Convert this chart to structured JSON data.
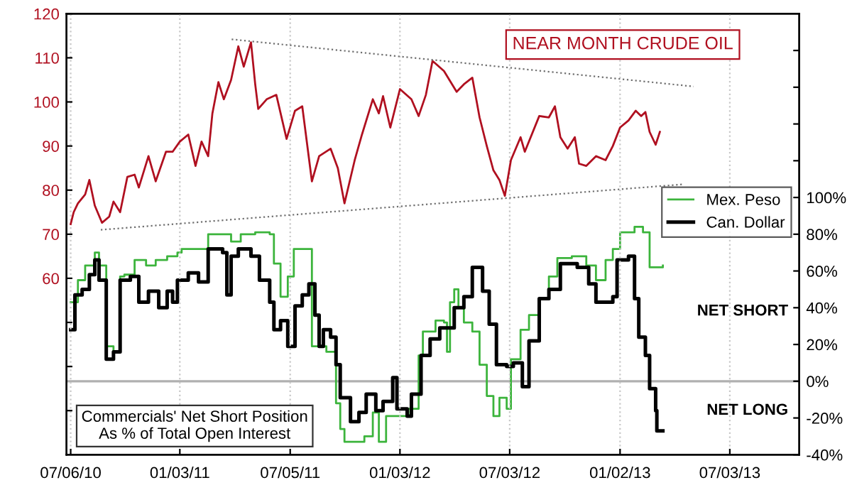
{
  "chart_data": {
    "type": "line",
    "xlim": [
      "2010-06-29",
      "2013-10-26"
    ],
    "xticks": [
      {
        "value": "2010-07-06",
        "label": "07/06/10"
      },
      {
        "value": "2011-01-03",
        "label": "01/03/11"
      },
      {
        "value": "2011-07-05",
        "label": "07/05/11"
      },
      {
        "value": "2012-01-03",
        "label": "01/03/12"
      },
      {
        "value": "2012-07-03",
        "label": "07/03/12"
      },
      {
        "value": "2013-01-02",
        "label": "01/02/13"
      },
      {
        "value": "2013-07-03",
        "label": "07/03/13"
      }
    ],
    "ylim": [
      20,
      120
    ],
    "yticks": [
      {
        "value": 30,
        "label": null
      },
      {
        "value": 40,
        "label": null
      },
      {
        "value": 50,
        "label": null
      },
      60,
      70,
      80,
      90,
      100,
      110,
      120
    ],
    "y2lim": [
      -40,
      200
    ],
    "y2ticks": [
      {
        "value": -40,
        "label": "-40%"
      },
      {
        "value": -20,
        "label": "-20%"
      },
      {
        "value": 0,
        "label": "0%"
      },
      {
        "value": 20,
        "label": "20%"
      },
      {
        "value": 40,
        "label": "40%"
      },
      {
        "value": 60,
        "label": "60%"
      },
      {
        "value": 80,
        "label": "80%"
      },
      {
        "value": 100,
        "label": "100%"
      },
      {
        "value": 120,
        "label": null
      },
      {
        "value": 140,
        "label": null
      },
      {
        "value": 160,
        "label": null
      },
      {
        "value": 180,
        "label": null
      }
    ],
    "grid": "x",
    "legend": "right",
    "ref_lines": [
      {
        "axis": "y2",
        "value": 0,
        "color": "#b0b0b0"
      }
    ],
    "annotations": [
      "NEAR MONTH CRUDE OIL",
      "NET SHORT",
      "NET LONG",
      "Commercials' Net Short Position\nAs % of Total Open Interest"
    ],
    "series": [
      {
        "color": "#b01020",
        "x": [
          "2010-07-06",
          "2010-07-11",
          "2010-07-18",
          "2010-07-30",
          "2010-08-06",
          "2010-08-15",
          "2010-08-27",
          "2010-09-08",
          "2010-09-15",
          "2010-09-26",
          "2010-10-08",
          "2010-10-20",
          "2010-10-27",
          "2010-11-12",
          "2010-11-24",
          "2010-12-11",
          "2010-12-22",
          "2011-01-03",
          "2011-01-17",
          "2011-01-29",
          "2011-02-08",
          "2011-02-19",
          "2011-02-26",
          "2011-03-08",
          "2011-03-17",
          "2011-03-29",
          "2011-04-10",
          "2011-04-19",
          "2011-05-01",
          "2011-05-08",
          "2011-05-13",
          "2011-05-27",
          "2011-06-12",
          "2011-06-29",
          "2011-07-13",
          "2011-07-25",
          "2011-08-10",
          "2011-08-22",
          "2011-09-10",
          "2011-09-22",
          "2011-10-03",
          "2011-10-20",
          "2011-11-01",
          "2011-11-19",
          "2011-11-29",
          "2011-12-06",
          "2011-12-18",
          "2012-01-03",
          "2012-01-22",
          "2012-02-03",
          "2012-02-15",
          "2012-02-26",
          "2012-03-16",
          "2012-04-06",
          "2012-04-18",
          "2012-05-02",
          "2012-05-14",
          "2012-05-26",
          "2012-06-06",
          "2012-06-16",
          "2012-06-25",
          "2012-07-05",
          "2012-07-21",
          "2012-07-28",
          "2012-08-21",
          "2012-09-06",
          "2012-09-16",
          "2012-09-25",
          "2012-10-07",
          "2012-10-19",
          "2012-10-26",
          "2012-11-07",
          "2012-11-23",
          "2012-12-09",
          "2012-12-21",
          "2013-01-02",
          "2013-01-16",
          "2013-01-28",
          "2013-02-06",
          "2013-02-13",
          "2013-02-20",
          "2013-03-02",
          "2013-03-09"
        ],
        "values": [
          72.3,
          75,
          77,
          79,
          82.3,
          76.5,
          72.6,
          74,
          77.4,
          75,
          83,
          83.5,
          80.6,
          87.7,
          82,
          88.7,
          88.7,
          91,
          92.6,
          85.5,
          91,
          87.7,
          97.4,
          104.5,
          100.6,
          105,
          112.6,
          108,
          113.5,
          104,
          98.4,
          100.6,
          101.6,
          91.6,
          98,
          99,
          82,
          87.7,
          89.4,
          85,
          77,
          86.8,
          92.6,
          100.6,
          97.4,
          101.3,
          94.2,
          102.9,
          100.6,
          96.8,
          101.6,
          109.3,
          107,
          102.3,
          104,
          105.5,
          96.5,
          90,
          84.5,
          82.3,
          78.7,
          86.8,
          92,
          88.7,
          96.8,
          96.5,
          99,
          92,
          89.4,
          92,
          86,
          85.5,
          87.7,
          86.8,
          90,
          94.2,
          95.8,
          98,
          96.8,
          97.7,
          93.2,
          90.3,
          93.2
        ]
      },
      {
        "type": "line",
        "color": "#707070",
        "line_style": "dotted",
        "x": [
          "2011-03-30",
          "2013-05-04"
        ],
        "values": [
          114.2,
          103.5
        ]
      },
      {
        "type": "line",
        "color": "#707070",
        "line_style": "dotted",
        "x": [
          "2010-08-25",
          "2013-04-15"
        ],
        "values": [
          71,
          81.3
        ]
      },
      {
        "type": "step",
        "name": "Mex. Peso",
        "color": "#3cb43c",
        "axis": "y2",
        "x": [
          "2010-07-06",
          "2010-07-18",
          "2010-07-30",
          "2010-08-15",
          "2010-08-22",
          "2010-09-03",
          "2010-09-15",
          "2010-09-26",
          "2010-10-03",
          "2010-10-20",
          "2010-11-08",
          "2010-11-24",
          "2010-12-13",
          "2010-12-30",
          "2011-01-06",
          "2011-02-10",
          "2011-02-19",
          "2011-03-29",
          "2011-04-14",
          "2011-05-08",
          "2011-06-01",
          "2011-06-08",
          "2011-06-19",
          "2011-07-01",
          "2011-07-11",
          "2011-08-05",
          "2011-08-10",
          "2011-09-03",
          "2011-09-19",
          "2011-09-26",
          "2011-10-03",
          "2011-11-05",
          "2011-11-19",
          "2011-11-29",
          "2011-12-11",
          "2011-12-29",
          "2012-01-17",
          "2012-02-03",
          "2012-02-10",
          "2012-02-15",
          "2012-03-02",
          "2012-03-16",
          "2012-03-21",
          "2012-03-26",
          "2012-04-02",
          "2012-04-09",
          "2012-04-18",
          "2012-05-02",
          "2012-05-14",
          "2012-05-26",
          "2012-06-06",
          "2012-06-16",
          "2012-06-28",
          "2012-07-05",
          "2012-07-21",
          "2012-08-04",
          "2012-08-21",
          "2012-09-06",
          "2012-09-20",
          "2012-10-14",
          "2012-11-07",
          "2012-11-23",
          "2012-12-09",
          "2012-12-21",
          "2013-01-02",
          "2013-01-26",
          "2013-02-09",
          "2013-02-20",
          "2013-03-14"
        ],
        "values": [
          43,
          55,
          63,
          70,
          63,
          19,
          16,
          57,
          58,
          66,
          63,
          66,
          68,
          70,
          72,
          72,
          80,
          76,
          80,
          81,
          80,
          64,
          46,
          57,
          72,
          72,
          19,
          16,
          -12,
          -26,
          -33,
          -30,
          -17,
          -33,
          -19,
          -19,
          -15,
          14,
          27,
          27,
          33,
          32,
          16,
          43,
          50,
          40,
          32,
          27,
          9,
          -8,
          -19,
          -9,
          -15,
          12,
          28,
          36,
          45,
          57,
          67,
          68,
          63,
          55,
          66,
          72,
          81,
          84,
          81,
          62,
          63
        ]
      },
      {
        "type": "step",
        "name": "Can. Dollar",
        "color": "#000000",
        "axis": "y2",
        "x": [
          "2010-07-06",
          "2010-07-13",
          "2010-07-25",
          "2010-08-06",
          "2010-08-15",
          "2010-08-22",
          "2010-09-03",
          "2010-09-15",
          "2010-09-26",
          "2010-10-13",
          "2010-10-27",
          "2010-11-12",
          "2010-11-29",
          "2010-12-13",
          "2010-12-22",
          "2010-12-30",
          "2011-01-17",
          "2011-02-03",
          "2011-02-19",
          "2011-03-15",
          "2011-03-22",
          "2011-03-29",
          "2011-04-10",
          "2011-05-01",
          "2011-05-15",
          "2011-06-01",
          "2011-06-08",
          "2011-06-19",
          "2011-07-01",
          "2011-07-13",
          "2011-07-25",
          "2011-08-05",
          "2011-08-15",
          "2011-08-22",
          "2011-08-29",
          "2011-09-10",
          "2011-09-19",
          "2011-09-26",
          "2011-10-13",
          "2011-10-27",
          "2011-11-08",
          "2011-11-24",
          "2011-12-06",
          "2011-12-22",
          "2011-12-29",
          "2012-01-15",
          "2012-01-22",
          "2012-02-07",
          "2012-02-22",
          "2012-03-09",
          "2012-03-21",
          "2012-04-02",
          "2012-04-18",
          "2012-05-02",
          "2012-05-19",
          "2012-05-30",
          "2012-06-11",
          "2012-06-28",
          "2012-07-09",
          "2012-07-24",
          "2012-08-04",
          "2012-08-21",
          "2012-09-06",
          "2012-09-25",
          "2012-10-23",
          "2012-11-11",
          "2012-11-23",
          "2012-12-21",
          "2012-12-28",
          "2013-01-16",
          "2013-01-26",
          "2013-02-02",
          "2013-02-13",
          "2013-02-20",
          "2013-03-02",
          "2013-03-04",
          "2013-03-14"
        ],
        "values": [
          28,
          47,
          50,
          58,
          66,
          55,
          12,
          16,
          55,
          57,
          43,
          49,
          40,
          49,
          43,
          55,
          59,
          54,
          72,
          70,
          47,
          68,
          72,
          68,
          55,
          43,
          28,
          33,
          19,
          41,
          47,
          53,
          36,
          19,
          28,
          24,
          9,
          -9,
          -22,
          -17,
          -7,
          -16,
          -11,
          2,
          -15,
          -19,
          -7,
          14,
          23,
          29,
          29,
          40,
          46,
          62,
          49,
          31,
          9,
          8,
          10,
          -3,
          22,
          45,
          50,
          64,
          62,
          53,
          43,
          46,
          66,
          68,
          45,
          24,
          14,
          -4,
          -16,
          -27,
          -27
        ]
      }
    ]
  }
}
